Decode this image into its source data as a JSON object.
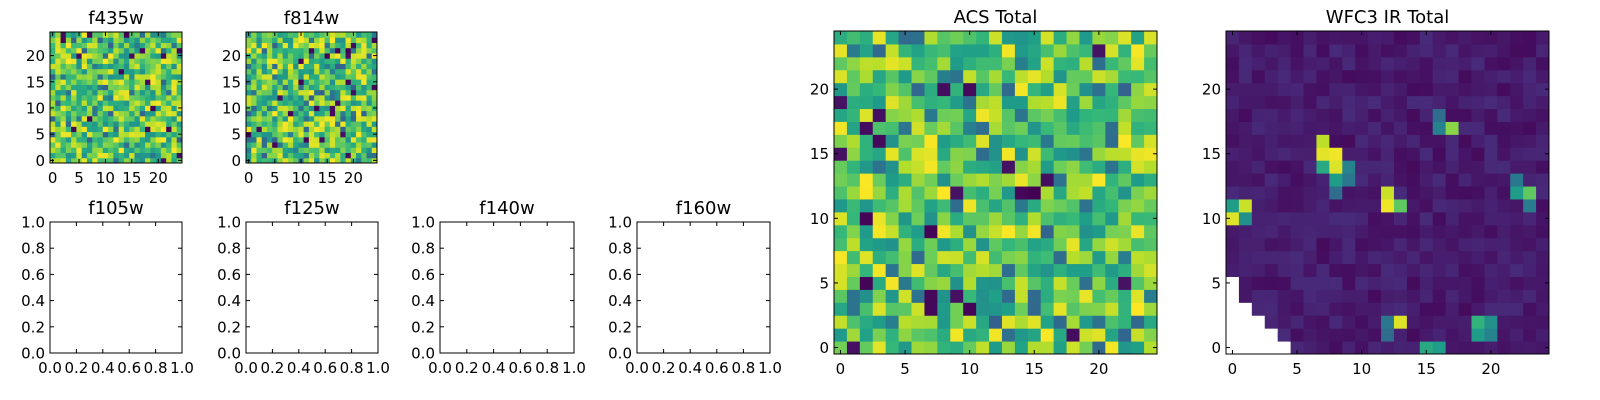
{
  "colormap": {
    "name": "viridis",
    "stops": [
      "#440154",
      "#482878",
      "#3e4989",
      "#31688e",
      "#26828e",
      "#1f9e89",
      "#35b779",
      "#6ece58",
      "#b5de2b",
      "#fde725"
    ]
  },
  "chart_data": [
    {
      "type": "heatmap",
      "title": "f435w",
      "grid": 25,
      "xlim": [
        -0.5,
        24.5
      ],
      "ylim": [
        -0.5,
        24.5
      ],
      "xticks": [
        0,
        5,
        10,
        15,
        20
      ],
      "yticks": [
        0,
        5,
        10,
        15,
        20
      ],
      "pattern": "noise",
      "vmin": 0.0,
      "vmax": 1.0,
      "seed": 435
    },
    {
      "type": "heatmap",
      "title": "f814w",
      "grid": 25,
      "xlim": [
        -0.5,
        24.5
      ],
      "ylim": [
        -0.5,
        24.5
      ],
      "xticks": [
        0,
        5,
        10,
        15,
        20
      ],
      "yticks": [
        0,
        5,
        10,
        15,
        20
      ],
      "pattern": "noise",
      "vmin": 0.0,
      "vmax": 1.0,
      "seed": 814
    },
    {
      "type": "empty",
      "title": "f105w",
      "xlim": [
        0,
        1
      ],
      "ylim": [
        0,
        1
      ],
      "xticks": [
        "0.0",
        "0.2",
        "0.4",
        "0.6",
        "0.8",
        "1.0"
      ],
      "yticks": [
        "0.0",
        "0.2",
        "0.4",
        "0.6",
        "0.8",
        "1.0"
      ]
    },
    {
      "type": "empty",
      "title": "f125w",
      "xlim": [
        0,
        1
      ],
      "ylim": [
        0,
        1
      ],
      "xticks": [
        "0.0",
        "0.2",
        "0.4",
        "0.6",
        "0.8",
        "1.0"
      ],
      "yticks": [
        "0.0",
        "0.2",
        "0.4",
        "0.6",
        "0.8",
        "1.0"
      ]
    },
    {
      "type": "empty",
      "title": "f140w",
      "xlim": [
        0,
        1
      ],
      "ylim": [
        0,
        1
      ],
      "xticks": [
        "0.0",
        "0.2",
        "0.4",
        "0.6",
        "0.8",
        "1.0"
      ],
      "yticks": [
        "0.0",
        "0.2",
        "0.4",
        "0.6",
        "0.8",
        "1.0"
      ]
    },
    {
      "type": "empty",
      "title": "f160w",
      "xlim": [
        0,
        1
      ],
      "ylim": [
        0,
        1
      ],
      "xticks": [
        "0.0",
        "0.2",
        "0.4",
        "0.6",
        "0.8",
        "1.0"
      ],
      "yticks": [
        "0.0",
        "0.2",
        "0.4",
        "0.6",
        "0.8",
        "1.0"
      ]
    },
    {
      "type": "heatmap",
      "title": "ACS Total",
      "grid": 25,
      "xlim": [
        -0.5,
        24.5
      ],
      "ylim": [
        -0.5,
        24.5
      ],
      "xticks": [
        0,
        5,
        10,
        15,
        20
      ],
      "yticks": [
        0,
        5,
        10,
        15,
        20
      ],
      "pattern": "noise",
      "vmin": 0.0,
      "vmax": 1.0,
      "seed": 1249
    },
    {
      "type": "heatmap",
      "title": "WFC3 IR Total",
      "grid": 25,
      "xlim": [
        -0.5,
        24.5
      ],
      "ylim": [
        -0.5,
        24.5
      ],
      "xticks": [
        0,
        5,
        10,
        15,
        20
      ],
      "yticks": [
        0,
        5,
        10,
        15,
        20
      ],
      "pattern": "sparse",
      "vmin": 0.0,
      "vmax": 1.0,
      "seed": 3,
      "bright_cells": [
        [
          0,
          10,
          0.95
        ],
        [
          1,
          11,
          0.92
        ],
        [
          0,
          11,
          0.55
        ],
        [
          1,
          10,
          0.5
        ],
        [
          7,
          16,
          0.9
        ],
        [
          7,
          15,
          0.96
        ],
        [
          8,
          15,
          0.98
        ],
        [
          8,
          14,
          0.95
        ],
        [
          7,
          14,
          0.6
        ],
        [
          8,
          13,
          0.55
        ],
        [
          9,
          14,
          0.45
        ],
        [
          9,
          13,
          0.4
        ],
        [
          8,
          12,
          0.35
        ],
        [
          12,
          11,
          0.98
        ],
        [
          12,
          12,
          0.92
        ],
        [
          13,
          11,
          0.75
        ],
        [
          16,
          17,
          0.45
        ],
        [
          17,
          17,
          0.82
        ],
        [
          16,
          18,
          0.35
        ],
        [
          22,
          12,
          0.55
        ],
        [
          23,
          12,
          0.75
        ],
        [
          22,
          13,
          0.4
        ],
        [
          23,
          11,
          0.42
        ],
        [
          12,
          2,
          0.4
        ],
        [
          13,
          2,
          0.95
        ],
        [
          12,
          1,
          0.35
        ],
        [
          19,
          2,
          0.65
        ],
        [
          20,
          2,
          0.5
        ],
        [
          19,
          1,
          0.55
        ],
        [
          20,
          1,
          0.45
        ],
        [
          15,
          0,
          0.6
        ],
        [
          16,
          0,
          0.55
        ]
      ],
      "masked": [
        [
          0,
          0
        ],
        [
          1,
          0
        ],
        [
          2,
          0
        ],
        [
          3,
          0
        ],
        [
          4,
          0
        ],
        [
          0,
          1
        ],
        [
          1,
          1
        ],
        [
          2,
          1
        ],
        [
          3,
          1
        ],
        [
          0,
          2
        ],
        [
          1,
          2
        ],
        [
          2,
          2
        ],
        [
          0,
          3
        ],
        [
          1,
          3
        ],
        [
          0,
          4
        ],
        [
          0,
          5
        ]
      ]
    }
  ]
}
